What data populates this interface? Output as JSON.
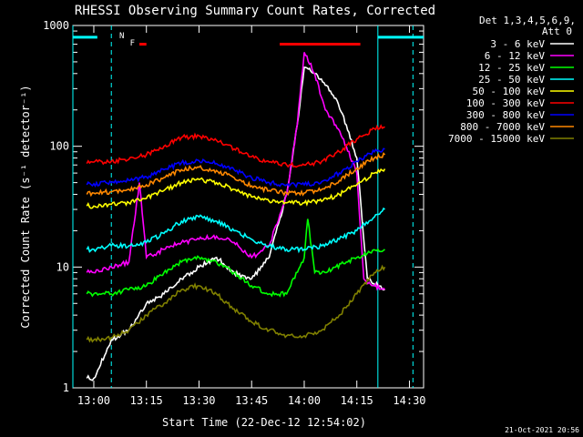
{
  "chart_data": {
    "type": "line",
    "title": "RHESSI Observing Summary Count Rates, Corrected",
    "xlabel": "Start Time (22-Dec-12 12:54:02)",
    "ylabel": "Corrected Count Rate (s⁻¹ detector⁻¹)",
    "y_scale": "log",
    "xlim": [
      "12:54:02",
      "14:34:02"
    ],
    "ylim": [
      1,
      1000
    ],
    "x_ticks": [
      "13:00",
      "13:15",
      "13:30",
      "13:45",
      "14:00",
      "14:15",
      "14:30"
    ],
    "y_ticks": [
      "1",
      "10",
      "100",
      "1000"
    ],
    "grid": false,
    "legend_position": "right",
    "legend_header": [
      "Det 1,3,4,5,6,9,",
      "Att 0"
    ],
    "footer_date": "21-Oct-2021 20:56",
    "background_color": "#000000",
    "series": [
      {
        "name": "3 - 6 keV",
        "color": "#ffffff",
        "x": [
          "12:58",
          "13:00",
          "13:05",
          "13:10",
          "13:15",
          "13:20",
          "13:25",
          "13:30",
          "13:35",
          "13:40",
          "13:45",
          "13:50",
          "13:55",
          "13:58",
          "14:00",
          "14:03",
          "14:06",
          "14:09",
          "14:12",
          "14:15",
          "14:18",
          "14:21",
          "14:23"
        ],
        "y": [
          1.2,
          1.2,
          2.5,
          3,
          5,
          6,
          8,
          10,
          12,
          9,
          8,
          12,
          40,
          150,
          450,
          400,
          320,
          250,
          150,
          80,
          8,
          7,
          6.5
        ]
      },
      {
        "name": "6 - 12 keV",
        "color": "#ff00ff",
        "x": [
          "12:58",
          "13:00",
          "13:05",
          "13:10",
          "13:13",
          "13:15",
          "13:20",
          "13:25",
          "13:30",
          "13:35",
          "13:40",
          "13:45",
          "13:50",
          "13:55",
          "13:58",
          "14:00",
          "14:03",
          "14:06",
          "14:09",
          "14:12",
          "14:15",
          "14:17",
          "14:20",
          "14:23"
        ],
        "y": [
          9,
          9,
          10,
          11,
          50,
          12,
          14,
          16,
          17,
          18,
          16,
          12,
          15,
          40,
          150,
          600,
          400,
          200,
          150,
          100,
          60,
          8,
          7,
          6.5
        ]
      },
      {
        "name": "12 - 25 keV",
        "color": "#00ff00",
        "x": [
          "12:58",
          "13:00",
          "13:05",
          "13:10",
          "13:15",
          "13:20",
          "13:25",
          "13:30",
          "13:35",
          "13:40",
          "13:45",
          "13:50",
          "13:55",
          "14:00",
          "14:01",
          "14:03",
          "14:06",
          "14:09",
          "14:12",
          "14:15",
          "14:18",
          "14:21",
          "14:23"
        ],
        "y": [
          6,
          6,
          6,
          6.5,
          7,
          9,
          11,
          12,
          11,
          9,
          7,
          6,
          6,
          12,
          25,
          9,
          9,
          10,
          11,
          12,
          13,
          14,
          14
        ]
      },
      {
        "name": "25 - 50 keV",
        "color": "#00ffff",
        "x": [
          "12:58",
          "13:00",
          "13:05",
          "13:10",
          "13:15",
          "13:20",
          "13:25",
          "13:30",
          "13:35",
          "13:40",
          "13:45",
          "13:50",
          "13:55",
          "14:00",
          "14:05",
          "14:10",
          "14:15",
          "14:20",
          "14:23"
        ],
        "y": [
          14,
          14,
          15,
          15,
          16,
          19,
          24,
          26,
          24,
          20,
          17,
          15,
          14,
          14,
          15,
          17,
          20,
          26,
          30
        ]
      },
      {
        "name": "50 - 100 keV",
        "color": "#ffff00",
        "x": [
          "12:58",
          "13:00",
          "13:05",
          "13:10",
          "13:15",
          "13:20",
          "13:25",
          "13:30",
          "13:35",
          "13:40",
          "13:45",
          "13:50",
          "13:55",
          "14:00",
          "14:05",
          "14:10",
          "14:15",
          "14:20",
          "14:23"
        ],
        "y": [
          32,
          32,
          33,
          34,
          37,
          43,
          50,
          53,
          50,
          44,
          38,
          35,
          34,
          34,
          35,
          40,
          48,
          60,
          65
        ]
      },
      {
        "name": "100 - 300 keV",
        "color": "#ff0000",
        "x": [
          "12:58",
          "13:00",
          "13:05",
          "13:10",
          "13:15",
          "13:20",
          "13:25",
          "13:30",
          "13:35",
          "13:40",
          "13:45",
          "13:50",
          "13:55",
          "14:00",
          "14:05",
          "14:10",
          "14:15",
          "14:20",
          "14:23"
        ],
        "y": [
          72,
          74,
          75,
          78,
          85,
          100,
          118,
          122,
          112,
          95,
          82,
          74,
          70,
          70,
          75,
          90,
          115,
          140,
          145
        ]
      },
      {
        "name": "300 - 800 keV",
        "color": "#0000ff",
        "x": [
          "12:58",
          "13:00",
          "13:05",
          "13:10",
          "13:15",
          "13:20",
          "13:25",
          "13:30",
          "13:35",
          "13:40",
          "13:45",
          "13:50",
          "13:55",
          "14:00",
          "14:05",
          "14:10",
          "14:15",
          "14:20",
          "14:23"
        ],
        "y": [
          48,
          49,
          50,
          52,
          56,
          64,
          73,
          76,
          72,
          64,
          55,
          50,
          48,
          48,
          51,
          60,
          75,
          90,
          95
        ]
      },
      {
        "name": "800 - 7000 keV",
        "color": "#ff8800",
        "x": [
          "12:58",
          "13:00",
          "13:05",
          "13:10",
          "13:15",
          "13:20",
          "13:25",
          "13:30",
          "13:35",
          "13:40",
          "13:45",
          "13:50",
          "13:55",
          "14:00",
          "14:05",
          "14:10",
          "14:15",
          "14:20",
          "14:23"
        ],
        "y": [
          40,
          41,
          42,
          44,
          48,
          55,
          64,
          67,
          63,
          55,
          47,
          43,
          41,
          41,
          44,
          52,
          66,
          80,
          85
        ]
      },
      {
        "name": "7000 - 15000 keV",
        "color": "#808000",
        "x": [
          "12:58",
          "13:00",
          "13:05",
          "13:10",
          "13:15",
          "13:20",
          "13:25",
          "13:30",
          "13:35",
          "13:40",
          "13:45",
          "13:50",
          "13:55",
          "14:00",
          "14:05",
          "14:10",
          "14:15",
          "14:20",
          "14:23"
        ],
        "y": [
          2.5,
          2.5,
          2.6,
          3,
          4,
          5,
          6.5,
          7,
          6,
          4.5,
          3.5,
          3,
          2.7,
          2.7,
          3,
          4,
          6,
          9,
          10
        ]
      }
    ],
    "annotation_bars": [
      {
        "label": "",
        "color": "#00ffff",
        "x": [
          "12:54:02",
          "13:01"
        ],
        "y": 800
      },
      {
        "label": "",
        "color": "#00ffff",
        "x": [
          "14:21",
          "14:34:02"
        ],
        "y": 800
      },
      {
        "label": "F",
        "color": "#ff0000",
        "x": [
          "13:13",
          "13:15"
        ],
        "y": 700
      },
      {
        "label": "",
        "color": "#ff0000",
        "x": [
          "13:53",
          "14:16"
        ],
        "y": 700
      }
    ],
    "annotation_labels": [
      {
        "text": "N",
        "color": "#00ffff",
        "x": "13:08"
      },
      {
        "text": "F",
        "color": "#ff0000",
        "x": "13:11"
      }
    ],
    "vlines": [
      {
        "x": "12:54:02",
        "color": "#00ffff",
        "style": "solid"
      },
      {
        "x": "13:05",
        "color": "#00ffff",
        "style": "dashed"
      },
      {
        "x": "14:21",
        "color": "#00ffff",
        "style": "solid"
      },
      {
        "x": "14:31",
        "color": "#00ffff",
        "style": "dashed"
      }
    ]
  }
}
